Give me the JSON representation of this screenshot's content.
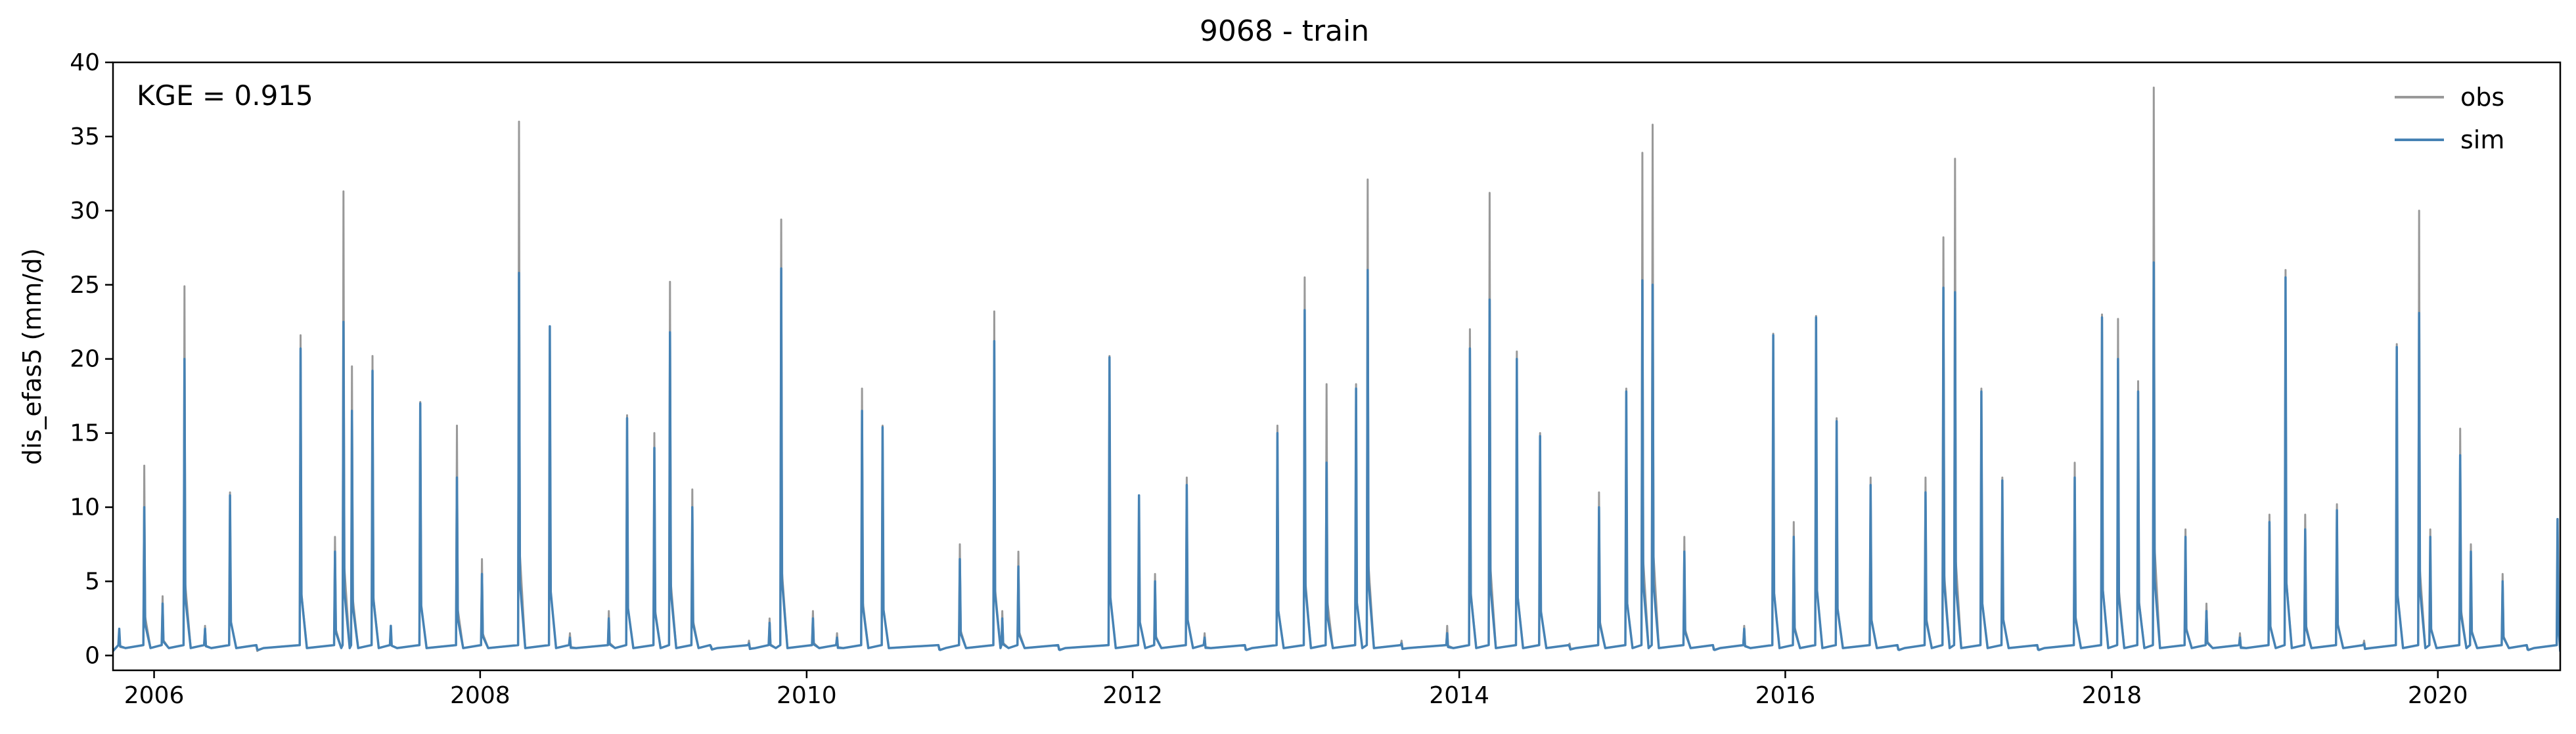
{
  "chart_data": {
    "type": "line",
    "title": "9068 - train",
    "xlabel": "",
    "ylabel": "dis_efas5 (mm/d)",
    "annotation": "KGE = 0.915",
    "xlim": [
      "2005-10-01",
      "2020-10-01"
    ],
    "ylim": [
      -1,
      40
    ],
    "x_ticks": [
      "2006",
      "2008",
      "2010",
      "2012",
      "2014",
      "2016",
      "2018",
      "2020"
    ],
    "y_ticks": [
      "0",
      "5",
      "10",
      "15",
      "20",
      "25",
      "30",
      "35",
      "40"
    ],
    "grid": false,
    "legend": {
      "placement": "top-right"
    },
    "colors": {
      "obs": "#999999",
      "sim": "#4682b4"
    },
    "series": [
      {
        "name": "obs",
        "color": "#999999",
        "x": [
          "2005-10-15",
          "2005-12-10",
          "2006-01-20",
          "2006-03-10",
          "2006-04-25",
          "2006-06-20",
          "2006-08-20",
          "2006-11-25",
          "2007-02-10",
          "2007-03-01",
          "2007-03-20",
          "2007-05-05",
          "2007-06-15",
          "2007-08-20",
          "2007-11-10",
          "2008-01-05",
          "2008-03-28",
          "2008-06-05",
          "2008-07-20",
          "2008-10-15",
          "2008-11-25",
          "2009-01-25",
          "2009-03-01",
          "2009-04-20",
          "2009-06-01",
          "2009-08-25",
          "2009-10-10",
          "2009-11-05",
          "2010-01-15",
          "2010-03-10",
          "2010-05-05",
          "2010-06-20",
          "2010-10-25",
          "2010-12-10",
          "2011-02-25",
          "2011-03-15",
          "2011-04-20",
          "2011-07-20",
          "2011-11-10",
          "2012-01-15",
          "2012-02-20",
          "2012-05-01",
          "2012-06-10",
          "2012-09-10",
          "2012-11-20",
          "2013-01-20",
          "2013-03-10",
          "2013-05-15",
          "2013-06-10",
          "2013-08-25",
          "2013-12-05",
          "2014-01-25",
          "2014-03-10",
          "2014-05-10",
          "2014-07-01",
          "2014-09-05",
          "2014-11-10",
          "2015-01-10",
          "2015-02-15",
          "2015-03-10",
          "2015-05-20",
          "2015-07-25",
          "2015-10-01",
          "2015-12-05",
          "2016-01-20",
          "2016-03-10",
          "2016-04-25",
          "2016-07-10",
          "2016-09-10",
          "2016-11-10",
          "2016-12-20",
          "2017-01-15",
          "2017-03-15",
          "2017-05-01",
          "2017-07-20",
          "2017-10-10",
          "2017-12-10",
          "2018-01-15",
          "2018-03-01",
          "2018-04-05",
          "2018-06-15",
          "2018-08-01",
          "2018-10-15",
          "2018-12-20",
          "2019-01-25",
          "2019-03-10",
          "2019-05-20",
          "2019-07-20",
          "2019-10-01",
          "2019-11-20",
          "2019-12-15",
          "2020-02-20",
          "2020-03-15",
          "2020-05-25",
          "2020-07-20",
          "2020-09-25"
        ],
        "y": [
          1.5,
          12.8,
          4.0,
          24.9,
          2.0,
          11.0,
          0.3,
          21.6,
          8.0,
          31.3,
          19.5,
          20.2,
          2.0,
          17.1,
          15.5,
          6.5,
          36.0,
          22.0,
          1.5,
          3.0,
          16.2,
          15.0,
          25.2,
          11.2,
          0.5,
          1.0,
          2.5,
          29.4,
          3.0,
          1.5,
          18.0,
          15.5,
          0.5,
          7.5,
          23.2,
          3.0,
          7.0,
          0.5,
          20.2,
          10.5,
          5.5,
          12.0,
          1.5,
          0.5,
          15.5,
          25.5,
          18.3,
          18.3,
          32.1,
          1.0,
          2.0,
          22.0,
          31.2,
          20.5,
          15.0,
          0.8,
          11.0,
          18.0,
          33.9,
          35.8,
          8.0,
          0.5,
          2.0,
          21.7,
          9.0,
          22.9,
          16.0,
          12.0,
          0.5,
          12.0,
          28.2,
          33.5,
          18.0,
          12.0,
          0.5,
          13.0,
          23.0,
          22.7,
          18.5,
          38.3,
          8.5,
          3.5,
          1.5,
          9.5,
          26.0,
          9.5,
          10.2,
          1.0,
          21.0,
          30.0,
          8.5,
          15.3,
          7.5,
          5.5,
          0.5,
          9.0
        ]
      },
      {
        "name": "sim",
        "color": "#4682b4",
        "x": [
          "2005-10-15",
          "2005-12-10",
          "2006-01-20",
          "2006-03-10",
          "2006-04-25",
          "2006-06-20",
          "2006-08-20",
          "2006-11-25",
          "2007-02-10",
          "2007-03-01",
          "2007-03-20",
          "2007-05-05",
          "2007-06-15",
          "2007-08-20",
          "2007-11-10",
          "2008-01-05",
          "2008-03-28",
          "2008-06-05",
          "2008-07-20",
          "2008-10-15",
          "2008-11-25",
          "2009-01-25",
          "2009-03-01",
          "2009-04-20",
          "2009-06-01",
          "2009-08-25",
          "2009-10-10",
          "2009-11-05",
          "2010-01-15",
          "2010-03-10",
          "2010-05-05",
          "2010-06-20",
          "2010-10-25",
          "2010-12-10",
          "2011-02-25",
          "2011-03-15",
          "2011-04-20",
          "2011-07-20",
          "2011-11-10",
          "2012-01-15",
          "2012-02-20",
          "2012-05-01",
          "2012-06-10",
          "2012-09-10",
          "2012-11-20",
          "2013-01-20",
          "2013-03-10",
          "2013-05-15",
          "2013-06-10",
          "2013-08-25",
          "2013-12-05",
          "2014-01-25",
          "2014-03-10",
          "2014-05-10",
          "2014-07-01",
          "2014-09-05",
          "2014-11-10",
          "2015-01-10",
          "2015-02-15",
          "2015-03-10",
          "2015-05-20",
          "2015-07-25",
          "2015-10-01",
          "2015-12-05",
          "2016-01-20",
          "2016-03-10",
          "2016-04-25",
          "2016-07-10",
          "2016-09-10",
          "2016-11-10",
          "2016-12-20",
          "2017-01-15",
          "2017-03-15",
          "2017-05-01",
          "2017-07-20",
          "2017-10-10",
          "2017-12-10",
          "2018-01-15",
          "2018-03-01",
          "2018-04-05",
          "2018-06-15",
          "2018-08-01",
          "2018-10-15",
          "2018-12-20",
          "2019-01-25",
          "2019-03-10",
          "2019-05-20",
          "2019-07-20",
          "2019-10-01",
          "2019-11-20",
          "2019-12-15",
          "2020-02-20",
          "2020-03-15",
          "2020-05-25",
          "2020-07-20",
          "2020-09-25"
        ],
        "y": [
          1.8,
          10.0,
          3.5,
          20.0,
          1.8,
          10.8,
          0.4,
          20.7,
          7.0,
          22.5,
          16.5,
          19.2,
          2.0,
          17.0,
          12.0,
          5.5,
          25.8,
          22.2,
          1.2,
          2.5,
          16.0,
          14.0,
          21.8,
          10.0,
          0.6,
          0.8,
          2.2,
          26.1,
          2.5,
          1.2,
          16.5,
          15.4,
          0.4,
          6.5,
          21.2,
          2.5,
          6.0,
          0.4,
          20.1,
          10.8,
          5.0,
          11.5,
          1.2,
          0.4,
          15.0,
          23.3,
          13.0,
          18.0,
          26.0,
          0.8,
          1.5,
          20.7,
          24.0,
          20.0,
          14.8,
          0.6,
          10.0,
          17.8,
          25.3,
          25.0,
          7.0,
          0.4,
          1.8,
          21.6,
          8.0,
          22.8,
          15.8,
          11.5,
          0.4,
          11.0,
          24.8,
          24.5,
          17.8,
          11.8,
          0.4,
          12.0,
          22.8,
          20.0,
          17.8,
          26.5,
          8.0,
          3.0,
          1.2,
          9.0,
          25.5,
          8.5,
          9.8,
          0.8,
          20.8,
          23.1,
          8.0,
          13.5,
          7.0,
          5.0,
          0.4,
          9.2
        ]
      }
    ]
  }
}
